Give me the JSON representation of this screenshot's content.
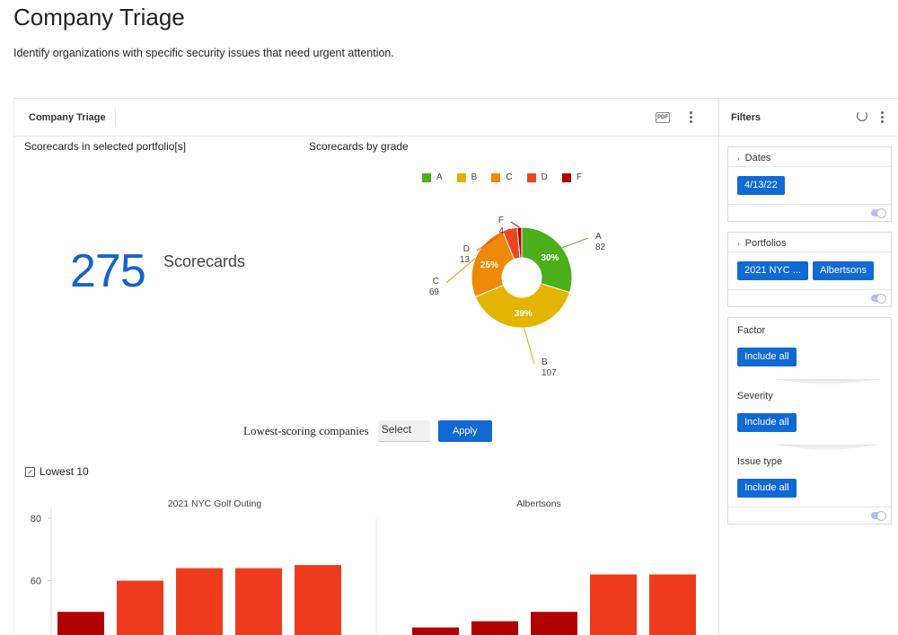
{
  "page": {
    "title": "Company Triage",
    "description": "Identify organizations with specific security issues that need urgent attention."
  },
  "dashboard": {
    "tab_label": "Company Triage",
    "pdf_label": "PDF",
    "scorecards_widget": {
      "title": "Scorecards in selected portfolio[s]",
      "count": "275",
      "unit": "Scorecards"
    },
    "grade_widget": {
      "title": "Scorecards by grade"
    },
    "lowest_scoring": {
      "label": "Lowest-scoring companies",
      "select_value": "Select",
      "apply_label": "Apply"
    },
    "lowest10_label": "Lowest 10"
  },
  "filters": {
    "title": "Filters",
    "dates": {
      "label": "Dates",
      "chips": [
        "4/13/22"
      ]
    },
    "portfolios": {
      "label": "Portfolios",
      "chips": [
        "2021 NYC ...",
        "Albertsons"
      ]
    },
    "factor": {
      "label": "Factor",
      "chip": "Include all"
    },
    "severity": {
      "label": "Severity",
      "chip": "Include all"
    },
    "issue_type": {
      "label": "Issue type",
      "chip": "Include all"
    }
  },
  "colors": {
    "accent": "#1169d4",
    "grade_A": "#4caf1a",
    "grade_B": "#e3b400",
    "grade_C": "#ed8a0a",
    "grade_D": "#ee4422",
    "grade_F": "#b00000"
  },
  "chart_data": [
    {
      "type": "pie",
      "title": "Scorecards by grade",
      "categories": [
        "A",
        "B",
        "C",
        "D",
        "F"
      ],
      "values": [
        82,
        107,
        69,
        13,
        4
      ],
      "percent_labels": [
        "30%",
        "39%",
        "25%",
        "",
        ""
      ],
      "legend": "top"
    },
    {
      "type": "bar",
      "title": "2021 NYC Golf Outing",
      "values": [
        50,
        60,
        64,
        64,
        65
      ],
      "ylim": [
        40,
        80
      ],
      "yticks": [
        40,
        60,
        80
      ]
    },
    {
      "type": "bar",
      "title": "Albertsons",
      "values": [
        45,
        47,
        50,
        62,
        62
      ],
      "ylim": [
        40,
        80
      ]
    }
  ]
}
